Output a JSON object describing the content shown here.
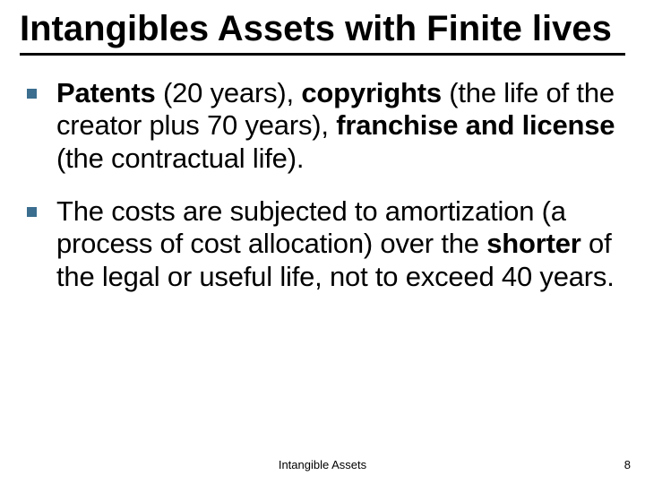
{
  "slide": {
    "title": "Intangibles Assets with Finite lives",
    "bullets": [
      {
        "parts": [
          {
            "text": "Patents",
            "bold": true
          },
          {
            "text": " (20 years), ",
            "bold": false
          },
          {
            "text": "copyrights",
            "bold": true
          },
          {
            "text": " (the life of the creator plus 70 years), ",
            "bold": false
          },
          {
            "text": "franchise and license",
            "bold": true
          },
          {
            "text": " (the contractual life).",
            "bold": false
          }
        ]
      },
      {
        "parts": [
          {
            "text": "The costs are subjected to amortization (a process of cost allocation) over the ",
            "bold": false
          },
          {
            "text": "shorter",
            "bold": true
          },
          {
            "text": " of the legal or useful life, not to exceed 40 years.",
            "bold": false
          }
        ]
      }
    ],
    "footer": "Intangible Assets",
    "page_number": "8"
  },
  "style": {
    "background_color": "#ffffff",
    "title_color": "#000000",
    "title_fontsize": 40,
    "title_fontweight": "bold",
    "underline_color": "#000000",
    "underline_height": 3,
    "bullet_marker_color": "#3b6e8f",
    "bullet_marker_size": 11,
    "body_text_color": "#000000",
    "body_fontsize": 31,
    "footer_fontsize": 13,
    "footer_color": "#000000"
  }
}
